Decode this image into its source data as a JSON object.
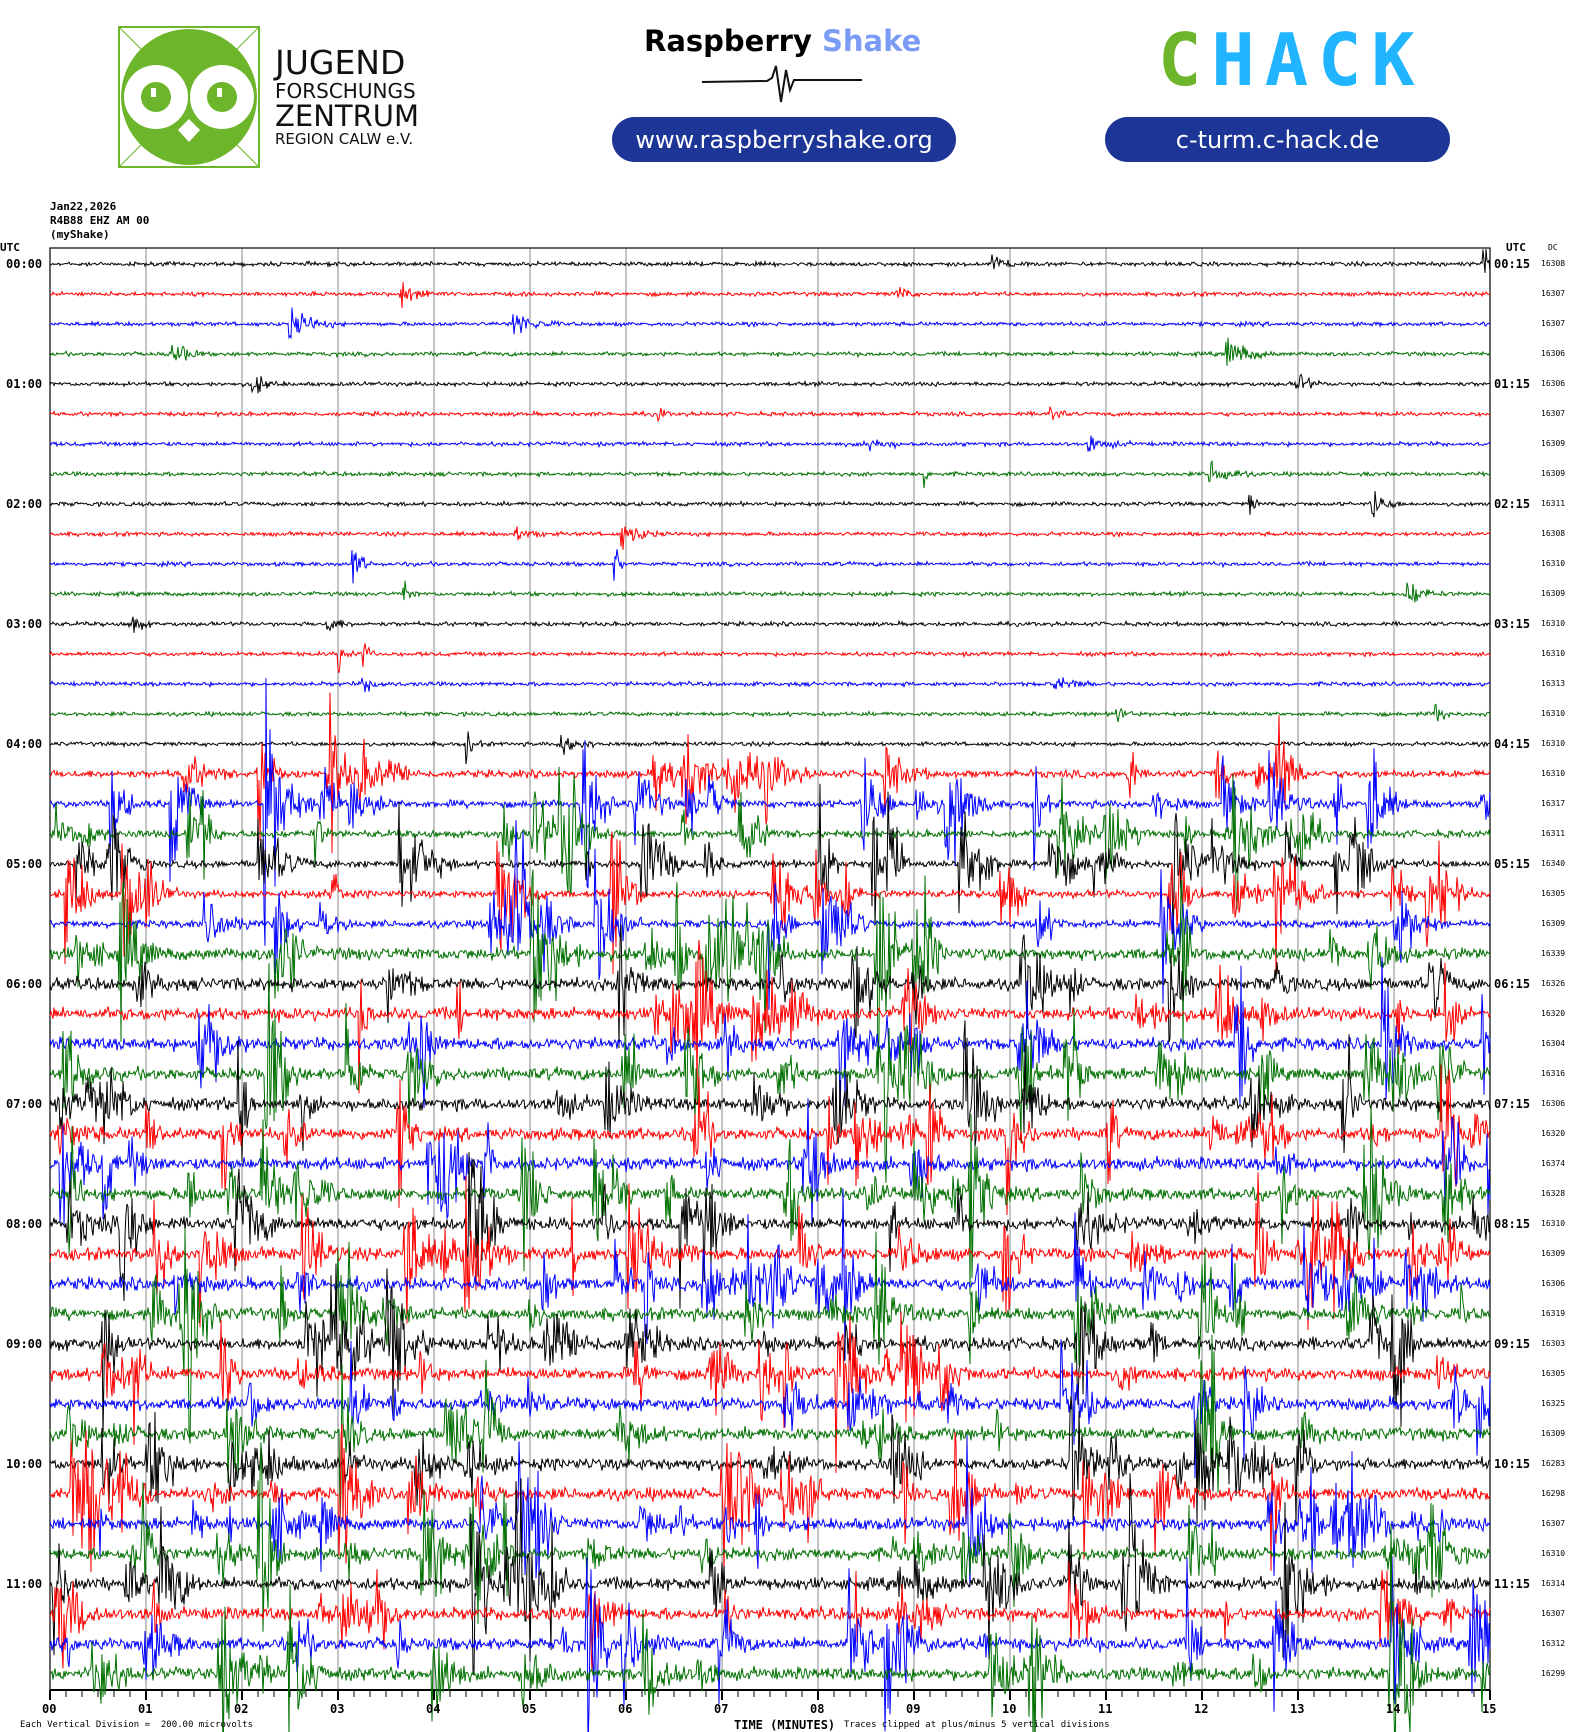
{
  "header": {
    "date": "Jan22,2026",
    "station": "R4B88 EHZ AM 00",
    "network": "(myShake)"
  },
  "logos": {
    "jfz": {
      "line1": "JUGEND",
      "line2": "FORSCHUNGS",
      "line3": "ZENTRUM",
      "line4": "REGION CALW e.V."
    },
    "raspberry_shake": {
      "word1": "Raspberry",
      "word2": "Shake",
      "url": "www.raspberryshake.org"
    },
    "chack": {
      "letter_c": "C",
      "letters_hack": "HACK",
      "url": "c-turm.c-hack.de"
    }
  },
  "colors": {
    "traces": [
      "#000000",
      "#ff0000",
      "#0000ff",
      "#007000"
    ],
    "grid": "#888888",
    "owl_green": "#6db52a",
    "chack_blue": "#22b5ff",
    "pill_blue": "#1c3596",
    "shake_blue": "#7b9cf5"
  },
  "chart_data": {
    "type": "line",
    "title": "Jan22,2026 R4B88 EHZ AM 00 (myShake)",
    "xlabel": "TIME (MINUTES)",
    "xlim": [
      0,
      15
    ],
    "x_ticks": [
      "00",
      "01",
      "02",
      "03",
      "04",
      "05",
      "06",
      "07",
      "08",
      "09",
      "10",
      "11",
      "12",
      "13",
      "14",
      "15"
    ],
    "left_axis_label": "UTC",
    "right_axis_label": "UTC",
    "dc_label": "DC",
    "hour_labels": [
      {
        "left": "00:00",
        "right": "00:15"
      },
      {
        "left": "01:00",
        "right": "01:15"
      },
      {
        "left": "02:00",
        "right": "02:15"
      },
      {
        "left": "03:00",
        "right": "03:15"
      },
      {
        "left": "04:00",
        "right": "04:15"
      },
      {
        "left": "05:00",
        "right": "05:15"
      },
      {
        "left": "06:00",
        "right": "06:15"
      },
      {
        "left": "07:00",
        "right": "07:15"
      },
      {
        "left": "08:00",
        "right": "08:15"
      },
      {
        "left": "09:00",
        "right": "09:15"
      },
      {
        "left": "10:00",
        "right": "10:15"
      },
      {
        "left": "11:00",
        "right": "11:15"
      }
    ],
    "dc_offsets": [
      16308,
      16307,
      16307,
      16306,
      16306,
      16307,
      16309,
      16309,
      16311,
      16308,
      16310,
      16309,
      16310,
      16310,
      16313,
      16310,
      16310,
      16310,
      16317,
      16311,
      16340,
      16305,
      16309,
      16339,
      16326,
      16320,
      16304,
      16316,
      16306,
      16320,
      16374,
      16328,
      16310,
      16309,
      16306,
      16319,
      16303,
      16305,
      16325,
      16309,
      16283,
      16298,
      16307,
      16310,
      16314,
      16307,
      16312,
      16299
    ],
    "scale_note": "Each Vertical Division =  200.00 microvolts",
    "clip_note": "Traces clipped at plus/minus 5 vertical divisions"
  }
}
